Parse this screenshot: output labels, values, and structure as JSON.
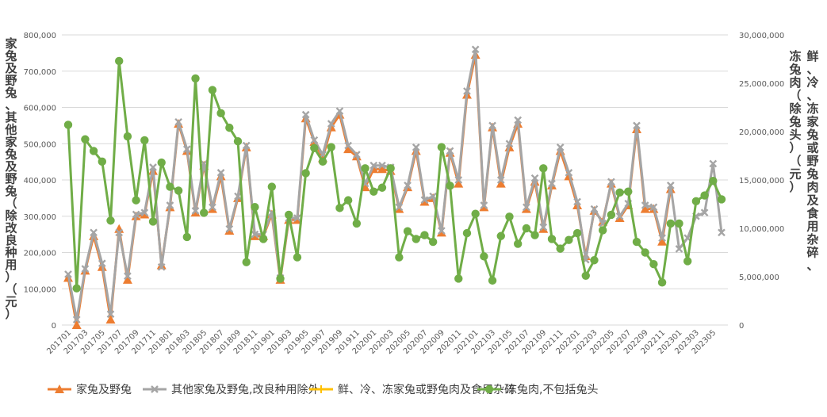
{
  "chart_data": {
    "type": "line",
    "ylabel_left": "家兔及野兔、其他家兔及野兔（除改良种用）（元）",
    "ylabel_right": "鲜、冷、冻家兔或野兔肉及食用杂碎、冻兔肉（除兔头）（元）",
    "y_left": {
      "min": 0,
      "max": 800000,
      "ticks": [
        "0",
        "100,000",
        "200,000",
        "300,000",
        "400,000",
        "500,000",
        "600,000",
        "700,000",
        "800,000"
      ]
    },
    "y_right": {
      "min": 0,
      "max": 30000000,
      "ticks": [
        "0",
        "5,000,000",
        "10,000,000",
        "15,000,000",
        "20,000,000",
        "25,000,000",
        "30,000,000"
      ]
    },
    "x": [
      "201701",
      "201702",
      "201703",
      "201704",
      "201705",
      "201706",
      "201707",
      "201708",
      "201709",
      "201710",
      "201711",
      "201712",
      "201801",
      "201802",
      "201803",
      "201804",
      "201805",
      "201806",
      "201807",
      "201808",
      "201809",
      "201810",
      "201811",
      "201812",
      "201901",
      "201902",
      "201903",
      "201904",
      "201905",
      "201906",
      "201907",
      "201908",
      "201909",
      "201910",
      "201911",
      "201912",
      "202001",
      "202002",
      "202003",
      "202004",
      "202005",
      "202006",
      "202007",
      "202008",
      "202009",
      "202010",
      "202011",
      "202012",
      "202101",
      "202102",
      "202103",
      "202104",
      "202105",
      "202106",
      "202107",
      "202108",
      "202109",
      "202110",
      "202111",
      "202112",
      "202201",
      "202202",
      "202203",
      "202204",
      "202205",
      "202206",
      "202207",
      "202208",
      "202209",
      "202210",
      "202211",
      "202212",
      "202301",
      "202302",
      "202303",
      "202304",
      "202305",
      "202306"
    ],
    "x_tick_labels": [
      "201701",
      "201703",
      "201705",
      "201707",
      "201709",
      "201711",
      "201801",
      "201803",
      "201805",
      "201807",
      "201809",
      "201811",
      "201901",
      "201903",
      "201905",
      "201907",
      "201909",
      "201911",
      "202001",
      "202003",
      "202005",
      "202007",
      "202009",
      "202011",
      "202101",
      "202103",
      "202105",
      "202107",
      "202109",
      "202111",
      "202201",
      "202203",
      "202205",
      "202207",
      "202209",
      "202211",
      "202301",
      "202303",
      "202305"
    ],
    "series": [
      {
        "name": "家兔及野兔",
        "axis": "left",
        "color": "#ED7D31",
        "marker": "triangle",
        "values": [
          130000,
          0,
          150000,
          245000,
          160000,
          15000,
          265000,
          125000,
          300000,
          305000,
          425000,
          165000,
          325000,
          555000,
          480000,
          310000,
          440000,
          320000,
          410000,
          260000,
          350000,
          490000,
          245000,
          245000,
          305000,
          125000,
          290000,
          290000,
          570000,
          505000,
          460000,
          545000,
          580000,
          485000,
          465000,
          380000,
          430000,
          430000,
          425000,
          320000,
          380000,
          480000,
          340000,
          350000,
          255000,
          475000,
          390000,
          635000,
          745000,
          325000,
          545000,
          390000,
          490000,
          555000,
          320000,
          395000,
          265000,
          385000,
          480000,
          410000,
          330000,
          190000,
          315000,
          285000,
          390000,
          295000,
          330000,
          540000,
          320000,
          320000,
          230000,
          375000,
          null,
          null,
          null,
          null,
          null,
          null
        ]
      },
      {
        "name": "其他家兔及野兔,改良种用除外",
        "axis": "left",
        "color": "#A5A5A5",
        "marker": "cross",
        "values": [
          140000,
          15000,
          155000,
          255000,
          170000,
          30000,
          255000,
          135000,
          305000,
          310000,
          435000,
          160000,
          330000,
          560000,
          485000,
          315000,
          445000,
          325000,
          420000,
          265000,
          355000,
          495000,
          250000,
          250000,
          310000,
          130000,
          295000,
          295000,
          580000,
          510000,
          470000,
          555000,
          590000,
          495000,
          470000,
          390000,
          440000,
          440000,
          435000,
          325000,
          385000,
          490000,
          345000,
          355000,
          260000,
          480000,
          400000,
          645000,
          760000,
          330000,
          550000,
          400000,
          500000,
          565000,
          325000,
          405000,
          270000,
          390000,
          490000,
          420000,
          340000,
          180000,
          320000,
          280000,
          395000,
          300000,
          335000,
          550000,
          330000,
          325000,
          240000,
          385000,
          210000,
          240000,
          300000,
          310000,
          445000,
          255000
        ]
      },
      {
        "name": "鲜、冷、冻家兔或野兔肉及食用杂碎",
        "axis": "right",
        "color": "#FFC000",
        "marker": "plus",
        "values": [
          null,
          null,
          null,
          null,
          null,
          null,
          null,
          null,
          null,
          null,
          null,
          null,
          null,
          null,
          null,
          null,
          null,
          null,
          null,
          null,
          null,
          null,
          null,
          null,
          null,
          null,
          null,
          null,
          null,
          null,
          null,
          null,
          null,
          null,
          null,
          null,
          null,
          null,
          null,
          null,
          null,
          null,
          null,
          null,
          null,
          null,
          null,
          null,
          null,
          null,
          null,
          null,
          null,
          null,
          null,
          null,
          null,
          null,
          null,
          null,
          null,
          null,
          null,
          null,
          null,
          null,
          null,
          null,
          null,
          null,
          null,
          null,
          null,
          null,
          null,
          null,
          null,
          null
        ]
      },
      {
        "name": "冻兔肉,不包括兔头",
        "axis": "right",
        "color": "#70AD47",
        "marker": "circle",
        "values": [
          20700000,
          3800000,
          19200000,
          18000000,
          16900000,
          10800000,
          27300000,
          19500000,
          12900000,
          19100000,
          10700000,
          16800000,
          14300000,
          13900000,
          9100000,
          25500000,
          11600000,
          24300000,
          21900000,
          20400000,
          19000000,
          6500000,
          12200000,
          8900000,
          14300000,
          4800000,
          11400000,
          7000000,
          15700000,
          18300000,
          16900000,
          18400000,
          12100000,
          12900000,
          10500000,
          16200000,
          13800000,
          14200000,
          16200000,
          7000000,
          9700000,
          8900000,
          9300000,
          8600000,
          18400000,
          14400000,
          4800000,
          9500000,
          11500000,
          7100000,
          4600000,
          9200000,
          11200000,
          8400000,
          10000000,
          9300000,
          16200000,
          8900000,
          7900000,
          8800000,
          9500000,
          5100000,
          6700000,
          9800000,
          11400000,
          13700000,
          13800000,
          8600000,
          7500000,
          6300000,
          4400000,
          10500000,
          10500000,
          6600000,
          12800000,
          13400000,
          14900000,
          13000000
        ]
      }
    ]
  }
}
